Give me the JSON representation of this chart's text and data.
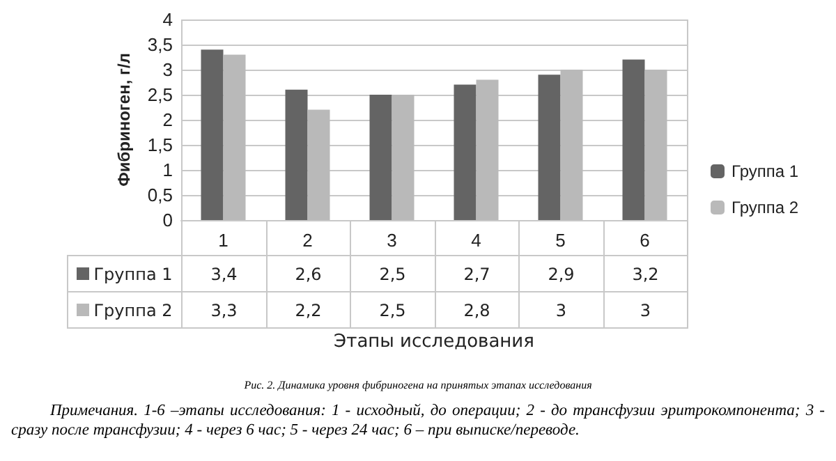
{
  "chart_data": {
    "type": "bar",
    "title": "Рис. 2. Динамика уровня фибриногена на принятых этапах исследования",
    "xlabel": "Этапы исследования",
    "ylabel": "Фибриноген, г/л",
    "categories": [
      "1",
      "2",
      "3",
      "4",
      "5",
      "6"
    ],
    "series": [
      {
        "name": "Группа 1",
        "color": "#646464",
        "values": [
          3.4,
          2.6,
          2.5,
          2.7,
          2.9,
          3.2
        ],
        "value_labels": [
          "3,4",
          "2,6",
          "2,5",
          "2,7",
          "2,9",
          "3,2"
        ]
      },
      {
        "name": "Группа 2",
        "color": "#b9b9b9",
        "values": [
          3.3,
          2.2,
          2.5,
          2.8,
          3,
          3
        ],
        "value_labels": [
          "3,3",
          "2,2",
          "2,5",
          "2,8",
          "3",
          "3"
        ]
      }
    ],
    "ylim": [
      0,
      4
    ],
    "yticks": [
      {
        "value": 0,
        "label": "0"
      },
      {
        "value": 0.5,
        "label": "0,5"
      },
      {
        "value": 1,
        "label": "1"
      },
      {
        "value": 1.5,
        "label": "1,5"
      },
      {
        "value": 2,
        "label": "2"
      },
      {
        "value": 2.5,
        "label": "2,5"
      },
      {
        "value": 3,
        "label": "3"
      },
      {
        "value": 3.5,
        "label": "3,5"
      },
      {
        "value": 4,
        "label": "4"
      }
    ],
    "grid": "y",
    "legend": "right",
    "annotations": [
      "Примечания. 1-6 –этапы исследования: 1 - исходный, до операции; 2 - до трансфузии эритрокомпонента; 3 - сразу после трансфузии; 4 - через 6 час; 5 - через 24 час; 6 – при выписке/переводе."
    ]
  }
}
